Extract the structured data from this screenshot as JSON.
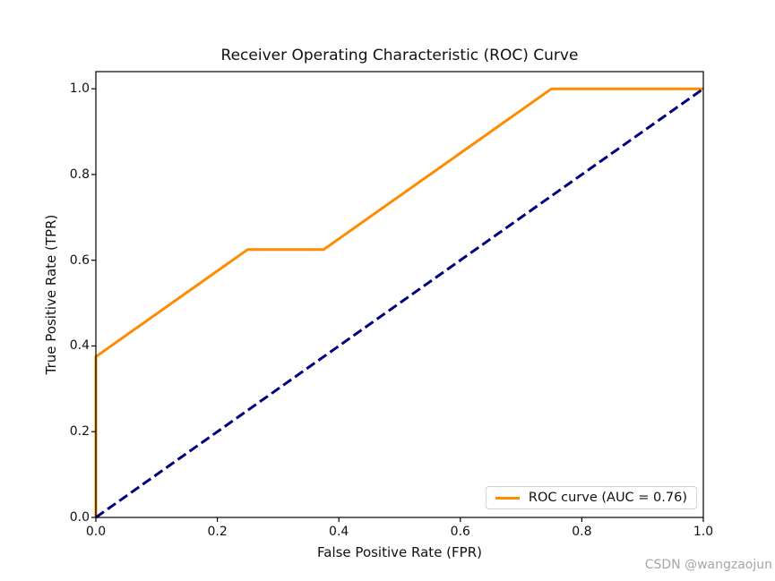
{
  "figure": {
    "background": "#ffffff"
  },
  "chart_data": {
    "type": "line",
    "title": "Receiver Operating Characteristic (ROC) Curve",
    "xlabel": "False Positive Rate (FPR)",
    "ylabel": "True Positive Rate (TPR)",
    "xlim": [
      0.0,
      1.0
    ],
    "ylim": [
      0.0,
      1.04
    ],
    "xticks": [
      0.0,
      0.2,
      0.4,
      0.6,
      0.8,
      1.0
    ],
    "yticks": [
      0.0,
      0.2,
      0.4,
      0.6,
      0.8,
      1.0
    ],
    "grid": false,
    "auc": 0.76,
    "legend": {
      "position": "lower right",
      "entries": [
        {
          "label": "ROC curve (AUC = 0.76)",
          "color": "#ff8c00",
          "style": "solid"
        }
      ]
    },
    "series": [
      {
        "name": "ROC curve",
        "color": "#ff8c00",
        "style": "solid",
        "width": 3,
        "points": [
          [
            0.0,
            0.0
          ],
          [
            0.0,
            0.375
          ],
          [
            0.25,
            0.625
          ],
          [
            0.375,
            0.625
          ],
          [
            0.75,
            1.0
          ],
          [
            1.0,
            1.0
          ]
        ]
      },
      {
        "name": "chance diagonal",
        "color": "#000080",
        "style": "dashed",
        "width": 3,
        "points": [
          [
            0.0,
            0.0
          ],
          [
            1.0,
            1.0
          ]
        ]
      }
    ]
  },
  "watermark": {
    "text": "CSDN @wangzaojun",
    "color": "#a6a6a6"
  }
}
